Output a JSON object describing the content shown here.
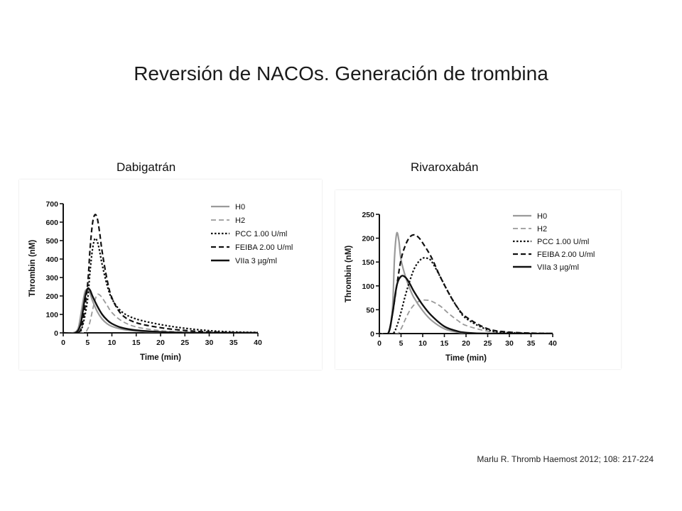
{
  "slide": {
    "title": "Reversión de NACOs. Generación de trombina",
    "citation": "Marlu R. Thromb Haemost 2012; 108: 217-224"
  },
  "panels": [
    {
      "label": "Dabigatrán"
    },
    {
      "label": "Rivaroxabán"
    }
  ],
  "chart_data": [
    {
      "type": "line",
      "title": "Dabigatrán",
      "xlabel": "Time (min)",
      "ylabel": "Thrombin (nM)",
      "xlim": [
        0,
        40
      ],
      "ylim": [
        0,
        700
      ],
      "xticks": [
        0,
        5,
        10,
        15,
        20,
        25,
        30,
        35,
        40
      ],
      "yticks": [
        0,
        100,
        200,
        300,
        400,
        500,
        600,
        700
      ],
      "legend_position": "top-right",
      "series": [
        {
          "name": "H0",
          "style": "solid-gray",
          "points": [
            [
              0,
              0
            ],
            [
              2,
              0
            ],
            [
              3,
              20
            ],
            [
              3.5,
              80
            ],
            [
              4,
              160
            ],
            [
              4.5,
              225
            ],
            [
              5,
              232
            ],
            [
              5.5,
              215
            ],
            [
              6,
              175
            ],
            [
              7,
              115
            ],
            [
              8,
              75
            ],
            [
              9,
              50
            ],
            [
              10,
              35
            ],
            [
              12,
              20
            ],
            [
              15,
              10
            ],
            [
              20,
              4
            ],
            [
              25,
              1
            ],
            [
              30,
              0
            ],
            [
              40,
              0
            ]
          ]
        },
        {
          "name": "H2",
          "style": "dashed-gray",
          "points": [
            [
              0,
              0
            ],
            [
              4,
              0
            ],
            [
              5,
              20
            ],
            [
              5.5,
              60
            ],
            [
              6,
              120
            ],
            [
              6.5,
              175
            ],
            [
              7,
              208
            ],
            [
              7.5,
              205
            ],
            [
              8,
              190
            ],
            [
              9,
              150
            ],
            [
              10,
              110
            ],
            [
              12,
              65
            ],
            [
              15,
              32
            ],
            [
              20,
              12
            ],
            [
              25,
              4
            ],
            [
              30,
              1
            ],
            [
              40,
              0
            ]
          ]
        },
        {
          "name": "PCC 1.00 U/ml",
          "style": "dotted-black",
          "points": [
            [
              0,
              0
            ],
            [
              3,
              0
            ],
            [
              4,
              40
            ],
            [
              5,
              180
            ],
            [
              5.5,
              330
            ],
            [
              6,
              450
            ],
            [
              6.5,
              510
            ],
            [
              7,
              495
            ],
            [
              7.5,
              440
            ],
            [
              8,
              370
            ],
            [
              9,
              260
            ],
            [
              10,
              185
            ],
            [
              12,
              115
            ],
            [
              15,
              75
            ],
            [
              20,
              45
            ],
            [
              25,
              25
            ],
            [
              30,
              12
            ],
            [
              35,
              5
            ],
            [
              40,
              2
            ]
          ]
        },
        {
          "name": "FEIBA 2.00 U/ml",
          "style": "dashed-black",
          "points": [
            [
              0,
              0
            ],
            [
              3,
              0
            ],
            [
              4,
              60
            ],
            [
              5,
              260
            ],
            [
              5.5,
              450
            ],
            [
              6,
              590
            ],
            [
              6.5,
              640
            ],
            [
              7,
              620
            ],
            [
              7.5,
              540
            ],
            [
              8,
              440
            ],
            [
              9,
              290
            ],
            [
              10,
              190
            ],
            [
              12,
              100
            ],
            [
              15,
              55
            ],
            [
              20,
              28
            ],
            [
              25,
              13
            ],
            [
              30,
              5
            ],
            [
              35,
              2
            ],
            [
              40,
              0
            ]
          ]
        },
        {
          "name": "VIIa 3 µg/ml",
          "style": "solid-black",
          "points": [
            [
              0,
              0
            ],
            [
              2.5,
              0
            ],
            [
              3.5,
              40
            ],
            [
              4,
              110
            ],
            [
              4.5,
              195
            ],
            [
              5,
              240
            ],
            [
              5.5,
              232
            ],
            [
              6,
              200
            ],
            [
              7,
              145
            ],
            [
              8,
              100
            ],
            [
              9,
              70
            ],
            [
              10,
              50
            ],
            [
              12,
              28
            ],
            [
              15,
              14
            ],
            [
              20,
              5
            ],
            [
              25,
              1
            ],
            [
              30,
              0
            ],
            [
              40,
              0
            ]
          ]
        }
      ]
    },
    {
      "type": "line",
      "title": "Rivaroxabán",
      "xlabel": "Time (min)",
      "ylabel": "Thrombin (nM)",
      "xlim": [
        0,
        40
      ],
      "ylim": [
        0,
        250
      ],
      "xticks": [
        0,
        5,
        10,
        15,
        20,
        25,
        30,
        35,
        40
      ],
      "yticks": [
        0,
        50,
        100,
        150,
        200,
        250
      ],
      "legend_position": "top-right",
      "series": [
        {
          "name": "H0",
          "style": "solid-gray",
          "points": [
            [
              0,
              0
            ],
            [
              2,
              0
            ],
            [
              3,
              50
            ],
            [
              3.5,
              160
            ],
            [
              4,
              210
            ],
            [
              4.5,
              195
            ],
            [
              5,
              155
            ],
            [
              6,
              120
            ],
            [
              7,
              95
            ],
            [
              8,
              75
            ],
            [
              10,
              48
            ],
            [
              12,
              28
            ],
            [
              15,
              10
            ],
            [
              18,
              3
            ],
            [
              20,
              1
            ],
            [
              25,
              0
            ],
            [
              40,
              0
            ]
          ]
        },
        {
          "name": "H2",
          "style": "dashed-gray",
          "points": [
            [
              0,
              0
            ],
            [
              4,
              0
            ],
            [
              5,
              10
            ],
            [
              6,
              30
            ],
            [
              7,
              48
            ],
            [
              8,
              60
            ],
            [
              9,
              67
            ],
            [
              10,
              70
            ],
            [
              11,
              70
            ],
            [
              12,
              68
            ],
            [
              14,
              58
            ],
            [
              16,
              42
            ],
            [
              18,
              28
            ],
            [
              20,
              17
            ],
            [
              25,
              5
            ],
            [
              30,
              1
            ],
            [
              40,
              0
            ]
          ]
        },
        {
          "name": "PCC 1.00 U/ml",
          "style": "dotted-black",
          "points": [
            [
              0,
              0
            ],
            [
              3,
              0
            ],
            [
              4,
              15
            ],
            [
              5,
              45
            ],
            [
              6,
              80
            ],
            [
              7,
              110
            ],
            [
              8,
              135
            ],
            [
              9,
              150
            ],
            [
              10,
              158
            ],
            [
              11,
              158
            ],
            [
              12,
              152
            ],
            [
              14,
              120
            ],
            [
              16,
              85
            ],
            [
              18,
              55
            ],
            [
              20,
              32
            ],
            [
              25,
              8
            ],
            [
              30,
              2
            ],
            [
              40,
              0
            ]
          ]
        },
        {
          "name": "FEIBA 2.00 U/ml",
          "style": "dashed-black",
          "points": [
            [
              0,
              0
            ],
            [
              2,
              0
            ],
            [
              3,
              40
            ],
            [
              4,
              100
            ],
            [
              5,
              155
            ],
            [
              6,
              185
            ],
            [
              7,
              202
            ],
            [
              8,
              207
            ],
            [
              9,
              202
            ],
            [
              10,
              190
            ],
            [
              12,
              160
            ],
            [
              14,
              120
            ],
            [
              16,
              85
            ],
            [
              18,
              55
            ],
            [
              20,
              35
            ],
            [
              25,
              10
            ],
            [
              30,
              3
            ],
            [
              35,
              1
            ],
            [
              40,
              0
            ]
          ]
        },
        {
          "name": "VIIa 3 µg/ml",
          "style": "solid-black",
          "points": [
            [
              0,
              0
            ],
            [
              2,
              0
            ],
            [
              3,
              40
            ],
            [
              4,
              100
            ],
            [
              5,
              120
            ],
            [
              6,
              118
            ],
            [
              7,
              105
            ],
            [
              8,
              88
            ],
            [
              10,
              60
            ],
            [
              12,
              38
            ],
            [
              15,
              15
            ],
            [
              18,
              5
            ],
            [
              20,
              2
            ],
            [
              25,
              0
            ],
            [
              40,
              0
            ]
          ]
        }
      ]
    }
  ]
}
